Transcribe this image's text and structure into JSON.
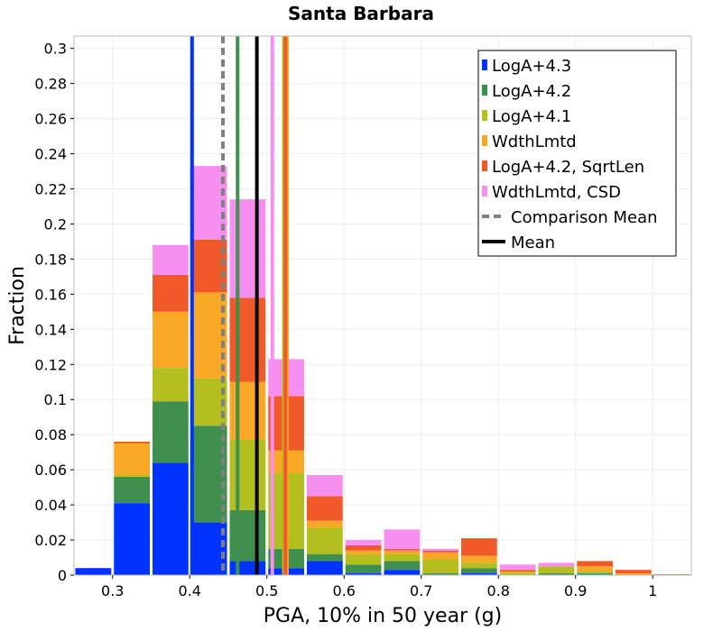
{
  "chart_data": {
    "type": "bar",
    "stacked": true,
    "title": "Santa Barbara",
    "xlabel": "PGA, 10% in 50 year (g)",
    "ylabel": "Fraction",
    "xlim": [
      0.25,
      1.05
    ],
    "ylim": [
      0,
      0.307
    ],
    "bin_width": 0.05,
    "grid": true,
    "legend_position": "top-right",
    "x_ticks": [
      0.3,
      0.4,
      0.5,
      0.6,
      0.7,
      0.8,
      0.9,
      1.0
    ],
    "x_tick_labels": [
      "0.3",
      "0.4",
      "0.5",
      "0.6",
      "0.7",
      "0.8",
      "0.9",
      "1"
    ],
    "y_ticks": [
      0,
      0.02,
      0.04,
      0.06,
      0.08,
      0.1,
      0.12,
      0.14,
      0.16,
      0.18,
      0.2,
      0.22,
      0.24,
      0.26,
      0.28,
      0.3
    ],
    "y_tick_labels": [
      "0",
      "0.02",
      "0.04",
      "0.06",
      "0.08",
      "0.1",
      "0.12",
      "0.14",
      "0.16",
      "0.18",
      "0.2",
      "0.22",
      "0.24",
      "0.26",
      "0.28",
      "0.3"
    ],
    "bin_starts": [
      0.25,
      0.3,
      0.35,
      0.4,
      0.45,
      0.5,
      0.55,
      0.6,
      0.65,
      0.7,
      0.75,
      0.8,
      0.85,
      0.9,
      0.95,
      1.0
    ],
    "series": [
      {
        "name": "LogA+4.3",
        "color": "#0033ff",
        "values": [
          0.004,
          0.041,
          0.064,
          0.03,
          0.008,
          0.004,
          0.008,
          0.001,
          0.003,
          0.0,
          0.001,
          0.0,
          0.0,
          0.0,
          0.0,
          0.0
        ]
      },
      {
        "name": "LogA+4.2",
        "color": "#3f8f4f",
        "values": [
          0.0,
          0.015,
          0.035,
          0.055,
          0.029,
          0.011,
          0.004,
          0.005,
          0.005,
          0.001,
          0.003,
          0.0,
          0.001,
          0.001,
          0.0,
          0.0
        ]
      },
      {
        "name": "LogA+4.1",
        "color": "#b3bf1f",
        "values": [
          0.0,
          0.001,
          0.019,
          0.027,
          0.04,
          0.043,
          0.015,
          0.006,
          0.004,
          0.008,
          0.003,
          0.001,
          0.004,
          0.001,
          0.0,
          0.0
        ]
      },
      {
        "name": "WdthLmtd",
        "color": "#f9a825",
        "values": [
          0.0,
          0.018,
          0.032,
          0.049,
          0.033,
          0.013,
          0.004,
          0.002,
          0.002,
          0.004,
          0.004,
          0.001,
          0.0,
          0.003,
          0.001,
          0.0
        ]
      },
      {
        "name": "LogA+4.2, SqrtLen",
        "color": "#f05a28",
        "values": [
          0.0,
          0.001,
          0.021,
          0.03,
          0.048,
          0.031,
          0.014,
          0.003,
          0.001,
          0.001,
          0.01,
          0.001,
          0.0,
          0.003,
          0.002,
          0.0005
        ]
      },
      {
        "name": "WdthLmtd, CSD",
        "color": "#f78ff0",
        "values": [
          0.0,
          0.0,
          0.017,
          0.042,
          0.056,
          0.021,
          0.012,
          0.003,
          0.011,
          0.001,
          0.0,
          0.003,
          0.002,
          0.0,
          0.0,
          0.0
        ]
      }
    ],
    "mean_lines": [
      {
        "name": "LogA+4.3",
        "x": 0.403,
        "color": "#0033ff",
        "style": "solid"
      },
      {
        "name": "LogA+4.2",
        "x": 0.462,
        "color": "#3f8f4f",
        "style": "solid"
      },
      {
        "name": "WdthLmtd, CSD",
        "x": 0.507,
        "color": "#f78ff0",
        "style": "solid"
      },
      {
        "name": "LogA+4.1",
        "x": 0.522,
        "color": "#b3bf1f",
        "style": "solid"
      },
      {
        "name": "WdthLmtd",
        "x": 0.526,
        "color": "#f9a825",
        "style": "solid"
      },
      {
        "name": "LogA+4.2, SqrtLen",
        "x": 0.524,
        "color": "#f05a28",
        "style": "solid"
      },
      {
        "name": "Comparison Mean",
        "x": 0.443,
        "color": "#808080",
        "style": "dashed"
      },
      {
        "name": "Mean",
        "x": 0.487,
        "color": "#000000",
        "style": "solid"
      }
    ],
    "legend": [
      {
        "label": "LogA+4.3",
        "color": "#0033ff",
        "kind": "box"
      },
      {
        "label": "LogA+4.2",
        "color": "#3f8f4f",
        "kind": "box"
      },
      {
        "label": "LogA+4.1",
        "color": "#b3bf1f",
        "kind": "box"
      },
      {
        "label": "WdthLmtd",
        "color": "#f9a825",
        "kind": "box"
      },
      {
        "label": "LogA+4.2, SqrtLen",
        "color": "#f05a28",
        "kind": "box"
      },
      {
        "label": "WdthLmtd, CSD",
        "color": "#f78ff0",
        "kind": "box"
      },
      {
        "label": "Comparison Mean",
        "color": "#808080",
        "kind": "dashed"
      },
      {
        "label": "Mean",
        "color": "#000000",
        "kind": "solid"
      }
    ]
  }
}
